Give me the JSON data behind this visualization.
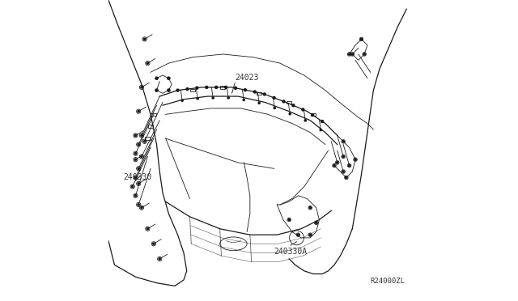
{
  "background_color": "#ffffff",
  "line_color": "#1a1a1a",
  "label_color": "#333333",
  "label_font_size": 7,
  "ref_font_size": 6.5,
  "figsize": [
    6.4,
    3.72
  ],
  "dpi": 100,
  "lw_thin": 0.6,
  "lw_med": 0.9
}
